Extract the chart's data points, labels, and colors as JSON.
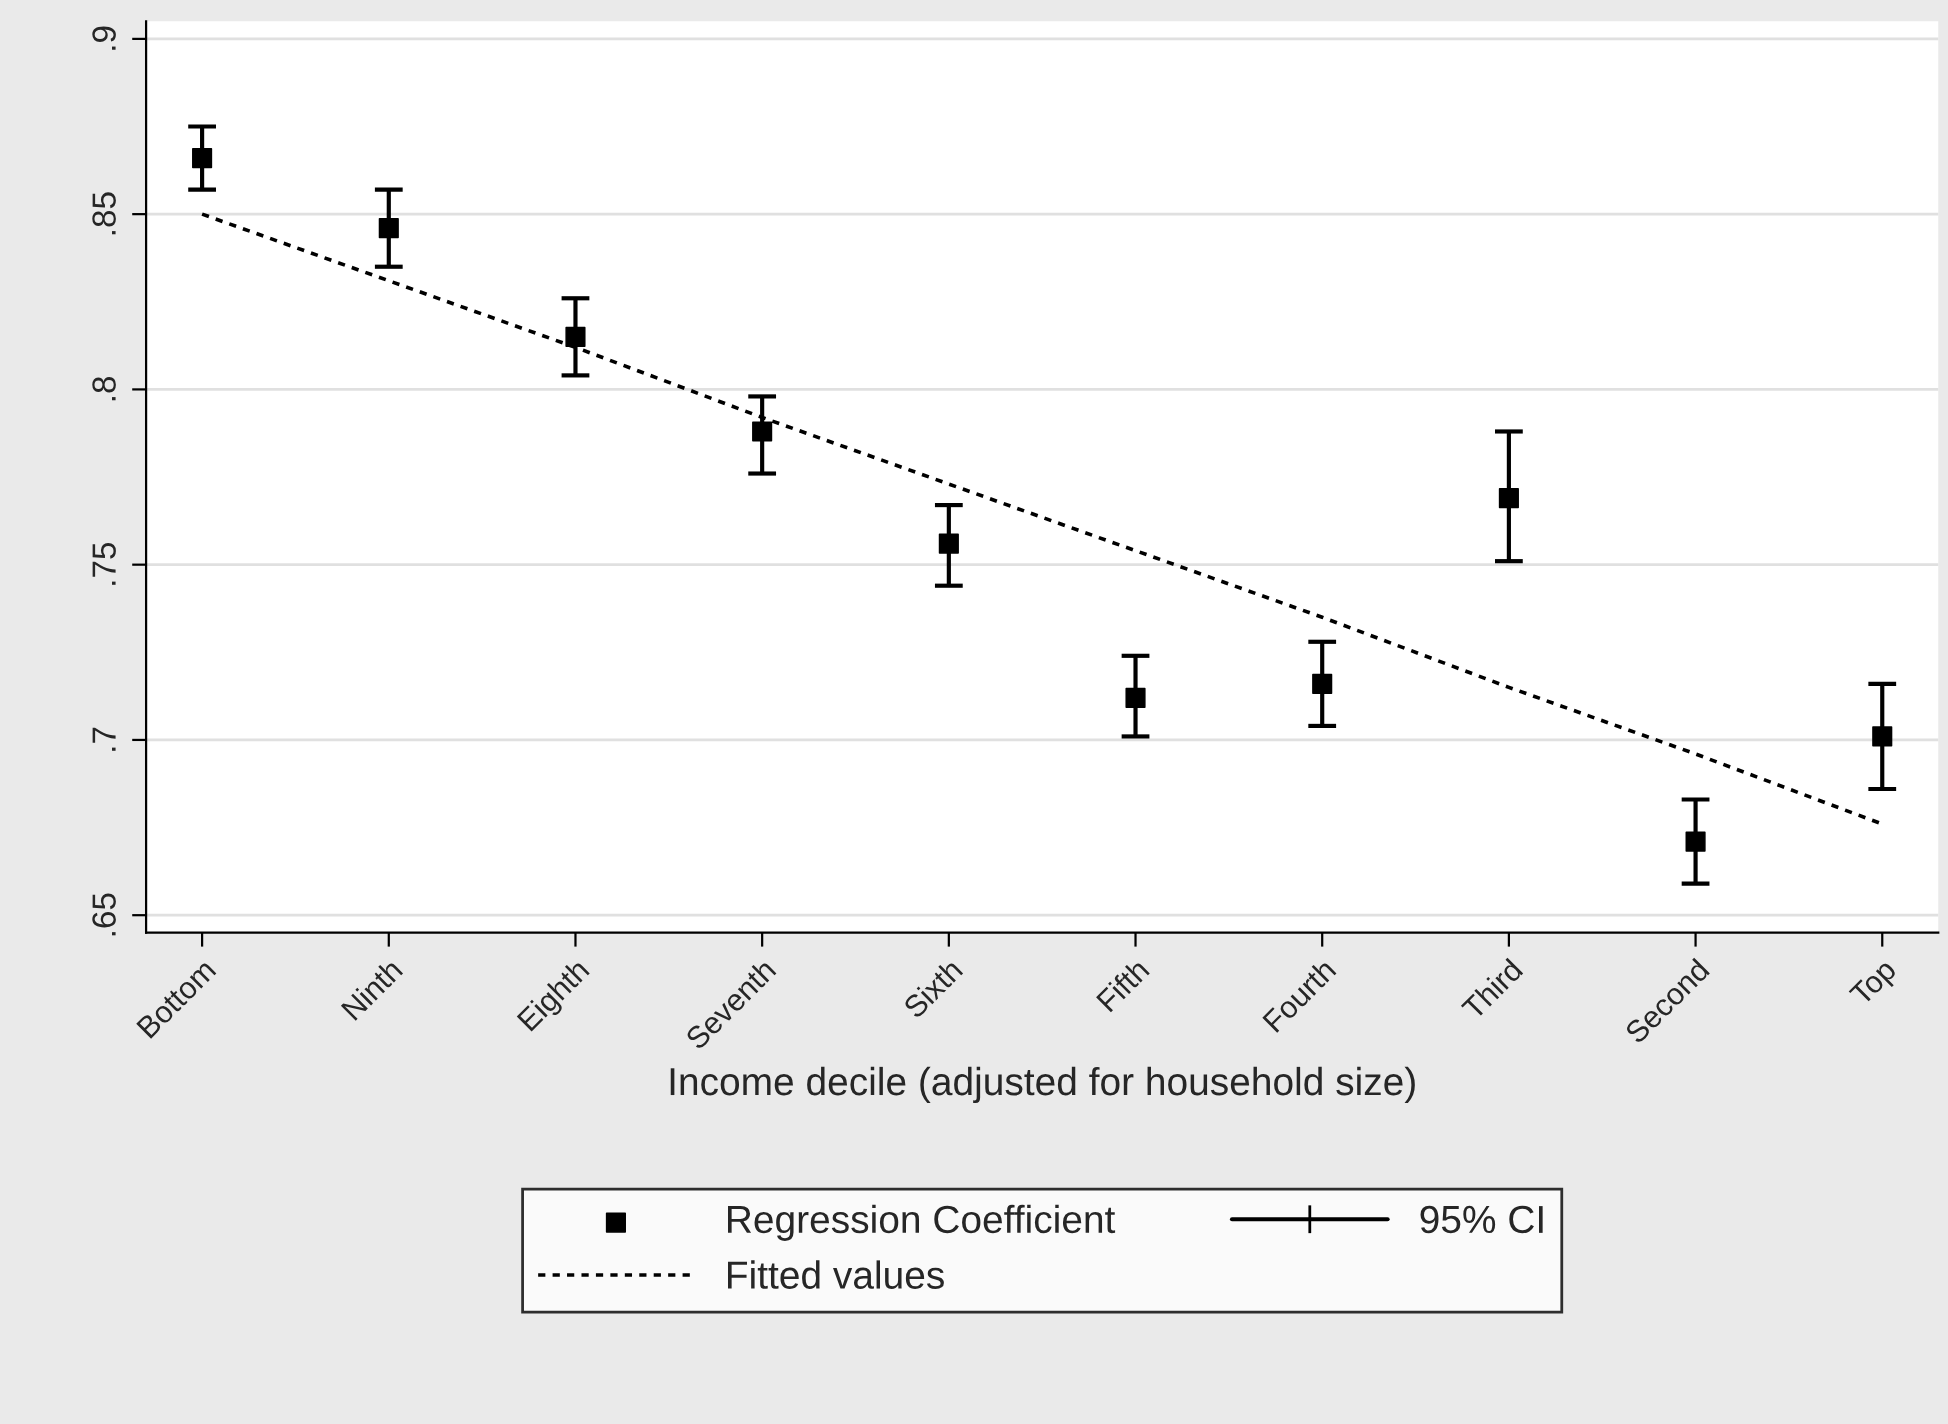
{
  "chart_data": {
    "type": "scatter",
    "xlabel": "Income decile (adjusted for household size)",
    "categories": [
      "Bottom",
      "Ninth",
      "Eighth",
      "Seventh",
      "Sixth",
      "Fifth",
      "Fourth",
      "Third",
      "Second",
      "Top"
    ],
    "series": [
      {
        "name": "Regression Coefficient",
        "color": "#000000",
        "marker": "square",
        "values": [
          0.866,
          0.846,
          0.815,
          0.788,
          0.756,
          0.712,
          0.716,
          0.769,
          0.671,
          0.701
        ],
        "errors": [
          [
            0.857,
            0.875
          ],
          [
            0.835,
            0.857
          ],
          [
            0.804,
            0.826
          ],
          [
            0.776,
            0.798
          ],
          [
            0.744,
            0.767
          ],
          [
            0.701,
            0.724
          ],
          [
            0.704,
            0.728
          ],
          [
            0.751,
            0.788
          ],
          [
            0.659,
            0.683
          ],
          [
            0.686,
            0.716
          ]
        ]
      },
      {
        "name": "Fitted values",
        "type": "line",
        "color": "#000000",
        "marker": "none",
        "line_style": "dotted",
        "values": [
          0.85,
          0.831,
          0.812,
          0.792,
          0.773,
          0.754,
          0.735,
          0.715,
          0.696,
          0.676
        ]
      }
    ],
    "annotations": [
      "95% CI"
    ],
    "ylim": [
      0.645,
      0.905
    ],
    "yticks": [
      {
        "value": 0.65,
        "label": ".65"
      },
      {
        "value": 0.7,
        "label": ".7"
      },
      {
        "value": 0.75,
        "label": ".75"
      },
      {
        "value": 0.8,
        "label": ".8"
      },
      {
        "value": 0.85,
        "label": ".85"
      },
      {
        "value": 0.9,
        "label": ".9"
      }
    ],
    "grid": "y",
    "legend": "bottom"
  }
}
